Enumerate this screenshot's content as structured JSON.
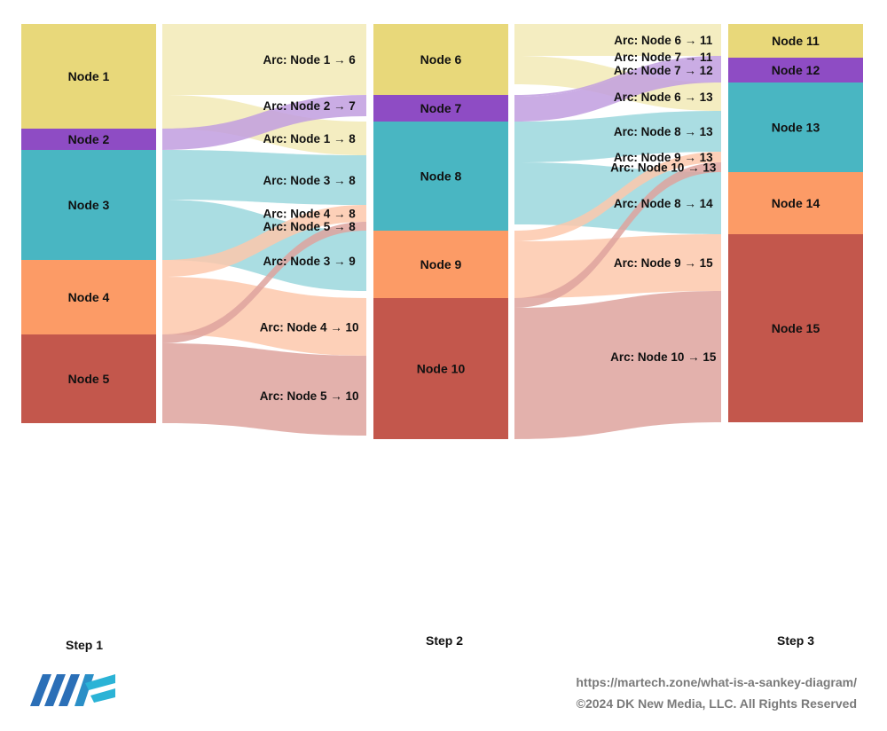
{
  "chart_data": {
    "type": "sankey",
    "steps": [
      "Step 1",
      "Step 2",
      "Step 3"
    ],
    "nodes": [
      {
        "id": "n1",
        "label": "Node 1",
        "step": 0,
        "color": "#E8D87A"
      },
      {
        "id": "n2",
        "label": "Node 2",
        "step": 0,
        "color": "#8E4CC4"
      },
      {
        "id": "n3",
        "label": "Node 3",
        "step": 0,
        "color": "#49B6C2"
      },
      {
        "id": "n4",
        "label": "Node 4",
        "step": 0,
        "color": "#FC9B66"
      },
      {
        "id": "n5",
        "label": "Node 5",
        "step": 0,
        "color": "#C3574C"
      },
      {
        "id": "n6",
        "label": "Node 6",
        "step": 1,
        "color": "#E8D87A"
      },
      {
        "id": "n7",
        "label": "Node 7",
        "step": 1,
        "color": "#8E4CC4"
      },
      {
        "id": "n8",
        "label": "Node 8",
        "step": 1,
        "color": "#49B6C2"
      },
      {
        "id": "n9",
        "label": "Node 9",
        "step": 1,
        "color": "#FC9B66"
      },
      {
        "id": "n10",
        "label": "Node 10",
        "step": 1,
        "color": "#C3574C"
      },
      {
        "id": "n11",
        "label": "Node 11",
        "step": 2,
        "color": "#E8D87A"
      },
      {
        "id": "n12",
        "label": "Node 12",
        "step": 2,
        "color": "#8E4CC4"
      },
      {
        "id": "n13",
        "label": "Node 13",
        "step": 2,
        "color": "#49B6C2"
      },
      {
        "id": "n14",
        "label": "Node 14",
        "step": 2,
        "color": "#FC9B66"
      },
      {
        "id": "n15",
        "label": "Node 15",
        "step": 2,
        "color": "#C3574C"
      }
    ],
    "links": [
      {
        "source": "n1",
        "target": "n6",
        "value": 32,
        "label": "Arc: Node 1 → 6"
      },
      {
        "source": "n1",
        "target": "n8",
        "value": 15.2,
        "label": "Arc: Node 1 → 8"
      },
      {
        "source": "n2",
        "target": "n7",
        "value": 9.6,
        "label": "Arc: Node 2 → 7"
      },
      {
        "source": "n3",
        "target": "n8",
        "value": 22.4,
        "label": "Arc: Node 3 → 8"
      },
      {
        "source": "n3",
        "target": "n9",
        "value": 27.2,
        "label": "Arc: Node 3 → 9"
      },
      {
        "source": "n4",
        "target": "n8",
        "value": 7.6,
        "label": "Arc: Node 4 → 8"
      },
      {
        "source": "n4",
        "target": "n10",
        "value": 26,
        "label": "Arc: Node 4 → 10"
      },
      {
        "source": "n5",
        "target": "n8",
        "value": 4,
        "label": "Arc: Node 5 → 8"
      },
      {
        "source": "n5",
        "target": "n10",
        "value": 36,
        "label": "Arc: Node 5 → 10"
      },
      {
        "source": "n6",
        "target": "n11",
        "value": 14.4,
        "label": "Arc: Node 6 → 11"
      },
      {
        "source": "n6",
        "target": "n13",
        "value": 12.8,
        "label": "Arc: Node 6 → 13"
      },
      {
        "source": "n7",
        "target": "n11",
        "value": 0.8,
        "label": "Arc: Node 7 → 11"
      },
      {
        "source": "n7",
        "target": "n12",
        "value": 11.2,
        "label": "Arc: Node 7 → 12"
      },
      {
        "source": "n8",
        "target": "n13",
        "value": 18.4,
        "label": "Arc: Node 8 → 13"
      },
      {
        "source": "n8",
        "target": "n14",
        "value": 28,
        "label": "Arc: Node 8 → 14"
      },
      {
        "source": "n9",
        "target": "n13",
        "value": 4.8,
        "label": "Arc: Node 9 → 13"
      },
      {
        "source": "n9",
        "target": "n15",
        "value": 25.6,
        "label": "Arc: Node 9 → 15"
      },
      {
        "source": "n10",
        "target": "n13",
        "value": 4.4,
        "label": "Arc: Node 10 → 13"
      },
      {
        "source": "n10",
        "target": "n15",
        "value": 59.2,
        "label": "Arc: Node 10 → 15"
      }
    ]
  },
  "footer": {
    "url": "https://martech.zone/what-is-a-sankey-diagram/",
    "copyright": "©2024 DK New Media, LLC. All Rights Reserved",
    "logo_text": "MTZ",
    "logo_color": "#2B6FB7",
    "logo_accent": "#2BB3D6"
  }
}
